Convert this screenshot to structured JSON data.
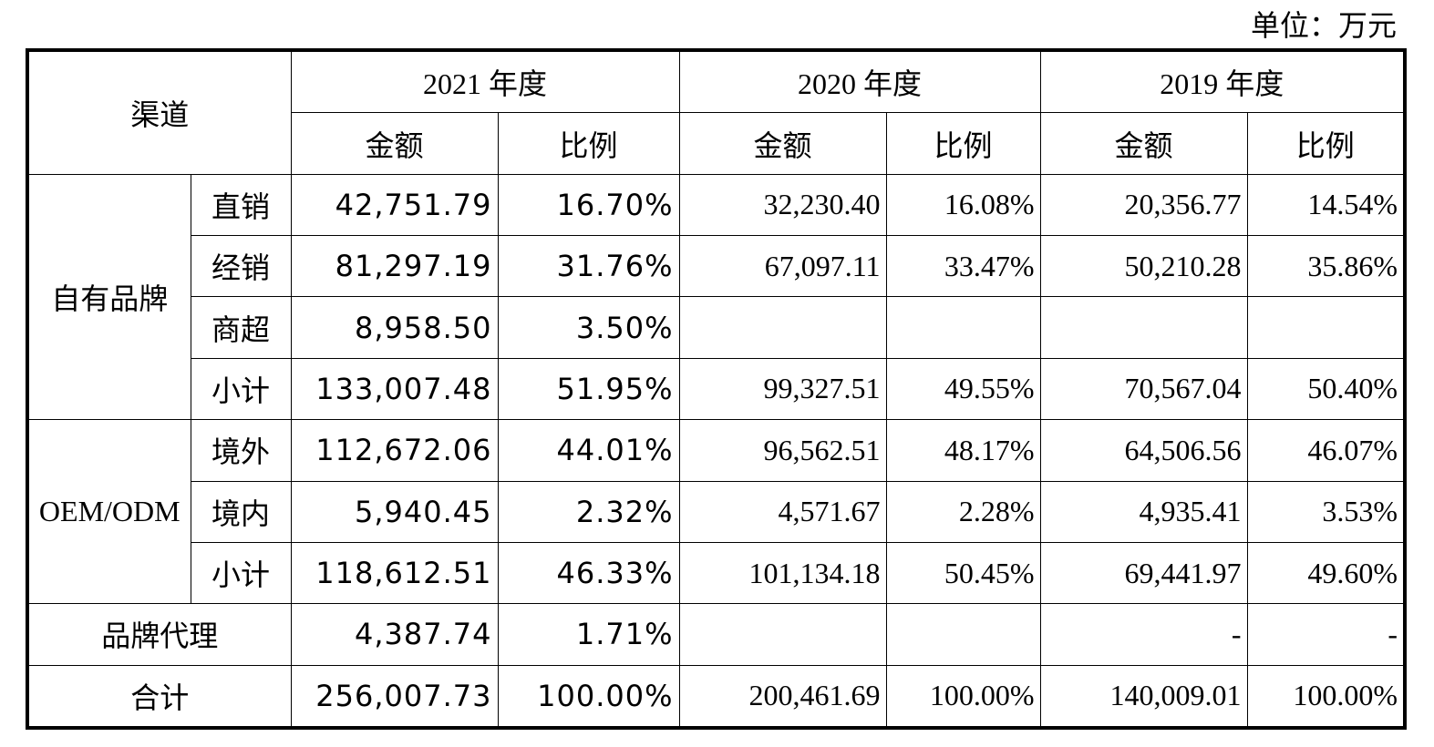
{
  "unit_label": "单位：万元",
  "header": {
    "channel": "渠道",
    "years": [
      "2021 年度",
      "2020 年度",
      "2019 年度"
    ],
    "amount": "金额",
    "ratio": "比例"
  },
  "groups": {
    "own_brand": "自有品牌",
    "oem": "OEM/ODM",
    "brand_agency": "品牌代理",
    "total": "合计"
  },
  "rows": [
    {
      "sub": "直销",
      "y2021": [
        "42,751.79",
        "16.70%"
      ],
      "y2020": [
        "32,230.40",
        "16.08%"
      ],
      "y2019": [
        "20,356.77",
        "14.54%"
      ]
    },
    {
      "sub": "经销",
      "y2021": [
        "81,297.19",
        "31.76%"
      ],
      "y2020": [
        "67,097.11",
        "33.47%"
      ],
      "y2019": [
        "50,210.28",
        "35.86%"
      ]
    },
    {
      "sub": "商超",
      "y2021": [
        "8,958.50",
        "3.50%"
      ],
      "y2020": [
        "",
        ""
      ],
      "y2019": [
        "",
        ""
      ]
    },
    {
      "sub": "小计",
      "y2021": [
        "133,007.48",
        "51.95%"
      ],
      "y2020": [
        "99,327.51",
        "49.55%"
      ],
      "y2019": [
        "70,567.04",
        "50.40%"
      ]
    },
    {
      "sub": "境外",
      "y2021": [
        "112,672.06",
        "44.01%"
      ],
      "y2020": [
        "96,562.51",
        "48.17%"
      ],
      "y2019": [
        "64,506.56",
        "46.07%"
      ]
    },
    {
      "sub": "境内",
      "y2021": [
        "5,940.45",
        "2.32%"
      ],
      "y2020": [
        "4,571.67",
        "2.28%"
      ],
      "y2019": [
        "4,935.41",
        "3.53%"
      ]
    },
    {
      "sub": "小计",
      "y2021": [
        "118,612.51",
        "46.33%"
      ],
      "y2020": [
        "101,134.18",
        "50.45%"
      ],
      "y2019": [
        "69,441.97",
        "49.60%"
      ]
    },
    {
      "sub": "",
      "y2021": [
        "4,387.74",
        "1.71%"
      ],
      "y2020": [
        "",
        ""
      ],
      "y2019": [
        "-",
        "-"
      ]
    },
    {
      "sub": "",
      "y2021": [
        "256,007.73",
        "100.00%"
      ],
      "y2020": [
        "200,461.69",
        "100.00%"
      ],
      "y2019": [
        "140,009.01",
        "100.00%"
      ]
    }
  ]
}
